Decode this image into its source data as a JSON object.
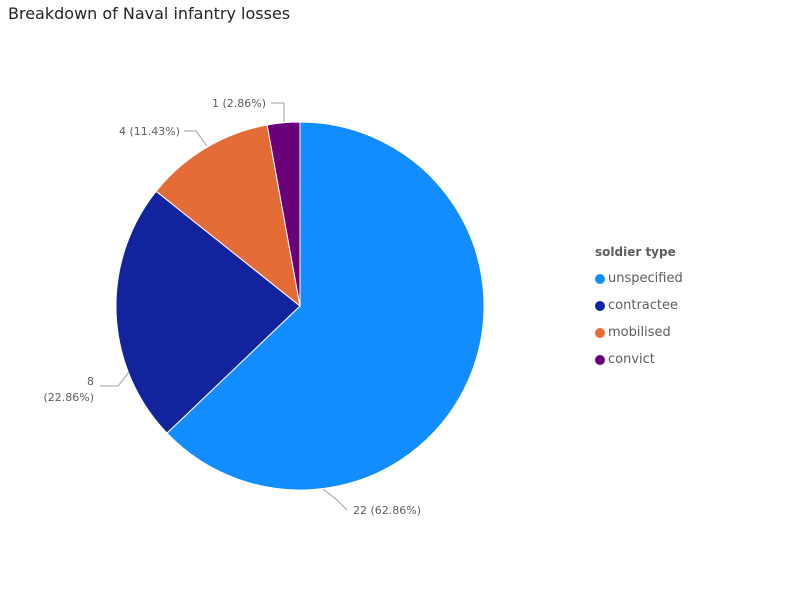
{
  "chart_data": {
    "type": "pie",
    "title": "Breakdown of Naval infantry losses",
    "legend_title": "soldier type",
    "legend_position": "right",
    "slices": [
      {
        "name": "unspecified",
        "value": 22,
        "percent": "62.86%",
        "label": "22 (62.86%)",
        "color": "#118DFF"
      },
      {
        "name": "contractee",
        "value": 8,
        "percent": "22.86%",
        "label_line1": "8",
        "label_line2": "(22.86%)",
        "color": "#12239E"
      },
      {
        "name": "mobilised",
        "value": 4,
        "percent": "11.43%",
        "label": "4 (11.43%)",
        "color": "#E66C37"
      },
      {
        "name": "convict",
        "value": 1,
        "percent": "2.86%",
        "label": "1 (2.86%)",
        "color": "#6B007B"
      }
    ]
  }
}
